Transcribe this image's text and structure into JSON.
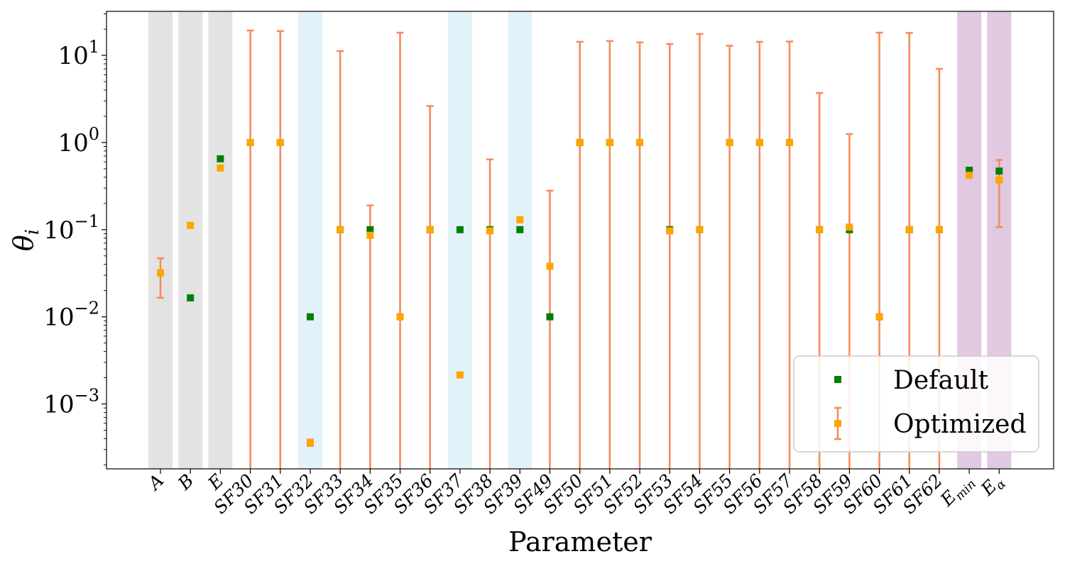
{
  "chart_data": {
    "type": "scatter",
    "title": "",
    "xlabel": "Parameter",
    "ylabel": "θ_i",
    "yscale": "log",
    "ylim": [
      0.00018,
      32
    ],
    "yticks": [
      {
        "value": 0.001,
        "base": "10",
        "exp": "−3"
      },
      {
        "value": 0.01,
        "base": "10",
        "exp": "−2"
      },
      {
        "value": 0.1,
        "base": "10",
        "exp": "−1"
      },
      {
        "value": 1,
        "base": "10",
        "exp": "0"
      },
      {
        "value": 10,
        "base": "10",
        "exp": "1"
      }
    ],
    "categories": [
      {
        "base": "A",
        "sub": ""
      },
      {
        "base": "B",
        "sub": ""
      },
      {
        "base": "E",
        "sub": ""
      },
      {
        "base": "SF30",
        "sub": ""
      },
      {
        "base": "SF31",
        "sub": ""
      },
      {
        "base": "SF32",
        "sub": ""
      },
      {
        "base": "SF33",
        "sub": ""
      },
      {
        "base": "SF34",
        "sub": ""
      },
      {
        "base": "SF35",
        "sub": ""
      },
      {
        "base": "SF36",
        "sub": ""
      },
      {
        "base": "SF37",
        "sub": ""
      },
      {
        "base": "SF38",
        "sub": ""
      },
      {
        "base": "SF39",
        "sub": ""
      },
      {
        "base": "SF49",
        "sub": ""
      },
      {
        "base": "SF50",
        "sub": ""
      },
      {
        "base": "SF51",
        "sub": ""
      },
      {
        "base": "SF52",
        "sub": ""
      },
      {
        "base": "SF53",
        "sub": ""
      },
      {
        "base": "SF54",
        "sub": ""
      },
      {
        "base": "SF55",
        "sub": ""
      },
      {
        "base": "SF56",
        "sub": ""
      },
      {
        "base": "SF57",
        "sub": ""
      },
      {
        "base": "SF58",
        "sub": ""
      },
      {
        "base": "SF59",
        "sub": ""
      },
      {
        "base": "SF60",
        "sub": ""
      },
      {
        "base": "SF61",
        "sub": ""
      },
      {
        "base": "SF62",
        "sub": ""
      },
      {
        "base": "E",
        "sub": "min"
      },
      {
        "base": "E",
        "sub": "α"
      }
    ],
    "series": [
      {
        "name": "Default",
        "color": "#008000",
        "marker": "square",
        "values": [
          0.032,
          0.0165,
          0.65,
          1,
          1,
          0.01,
          0.1,
          0.1,
          0.01,
          0.1,
          0.1,
          0.1,
          0.1,
          0.01,
          1,
          1,
          1,
          0.1,
          0.1,
          1,
          1,
          1,
          0.1,
          0.1,
          0.01,
          0.1,
          0.1,
          0.48,
          0.47
        ]
      },
      {
        "name": "Optimized",
        "color": "#FFA500",
        "marker": "square",
        "errorbar_color": "#F58C5E",
        "values": [
          0.032,
          0.112,
          0.51,
          1,
          1,
          0.00036,
          0.1,
          0.086,
          0.01,
          0.1,
          0.00215,
          0.097,
          0.13,
          0.038,
          1,
          1,
          1,
          0.097,
          0.1,
          1,
          1,
          1,
          0.1,
          0.107,
          0.01,
          0.1,
          0.1,
          0.42,
          0.37
        ],
        "err_low": [
          0.0165,
          null,
          null,
          0.00018,
          0.00018,
          0.00033,
          0.00018,
          0.00018,
          0.00018,
          0.00018,
          null,
          0.00018,
          null,
          0.00018,
          0.00018,
          0.00018,
          0.00018,
          0.00018,
          0.00018,
          0.00018,
          0.00018,
          0.00018,
          0.00018,
          0.00018,
          0.00018,
          0.00018,
          0.00018,
          null,
          0.107
        ],
        "err_high": [
          0.047,
          null,
          null,
          19.3,
          19.0,
          0.00039,
          11.2,
          0.19,
          18.2,
          2.62,
          null,
          0.64,
          null,
          0.28,
          14.3,
          14.6,
          14.1,
          13.5,
          17.6,
          12.9,
          14.3,
          14.4,
          3.7,
          1.25,
          18.2,
          18.1,
          7.0,
          null,
          0.63
        ]
      }
    ],
    "bands": [
      {
        "categories": [
          0,
          1,
          2
        ],
        "color": "#e3e3e3"
      },
      {
        "categories": [
          5,
          10,
          12
        ],
        "color": "#e2f2fa"
      },
      {
        "categories": [
          27,
          28
        ],
        "color": "#e0c9e1"
      }
    ],
    "legend": {
      "position": "lower-right",
      "entries": [
        "Default",
        "Optimized"
      ]
    },
    "grid": false
  }
}
